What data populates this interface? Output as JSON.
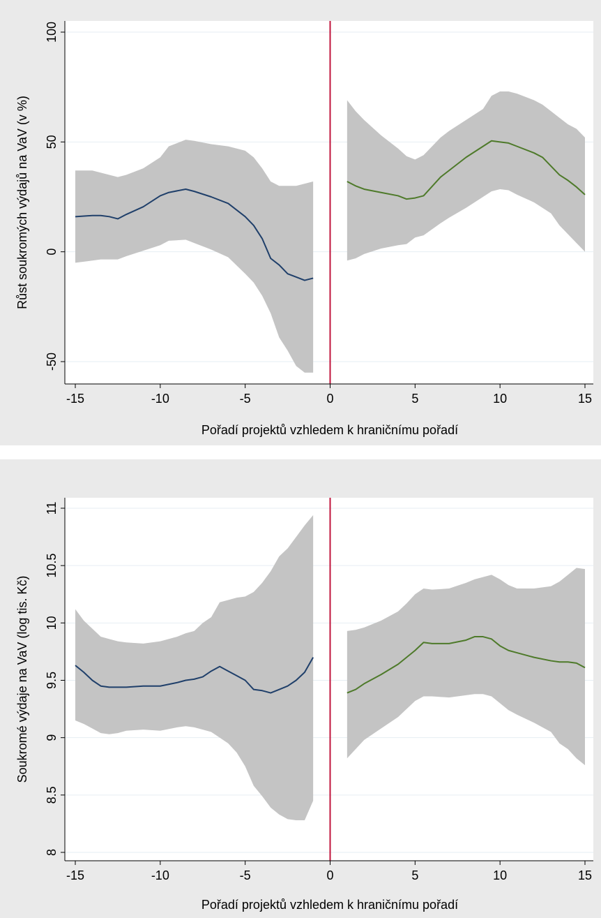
{
  "chart_data": [
    {
      "type": "line",
      "xlabel": "Pořadí projektů vzhledem k hraničnímu pořadí",
      "ylabel": "Růst soukromých výdajů na VaV (v %)",
      "xlim": [
        -15,
        15
      ],
      "ylim": [
        -55,
        100
      ],
      "x_ticks": [
        -15,
        -10,
        -5,
        0,
        5,
        10,
        15
      ],
      "y_ticks": [
        -50,
        0,
        50,
        100
      ],
      "cutoff_x": 0,
      "grid": true,
      "legend": "none",
      "colors": {
        "left": "#1f3f6a",
        "right": "#4e7a2a",
        "band": "#c4c4c4",
        "cutoff": "#c0143c",
        "panel_bg": "#eaeaea"
      },
      "series": [
        {
          "x": [
            -15,
            -14,
            -13.5,
            -13,
            -12.5,
            -12,
            -11,
            -10,
            -9.5,
            -8.5,
            -8,
            -7,
            -6,
            -5,
            -4.5,
            -4,
            -3.5,
            -3,
            -2.5,
            -2,
            -1.5,
            -1
          ],
          "values": [
            16,
            16.5,
            16.5,
            16,
            15,
            17,
            20.5,
            25.5,
            27,
            28.5,
            27.5,
            25,
            22,
            16,
            12,
            6,
            -3,
            -6,
            -10,
            -11.5,
            -13,
            -12
          ],
          "upper": [
            37,
            37,
            36,
            35,
            34,
            35,
            38,
            43,
            48,
            51,
            50.5,
            49,
            48,
            46,
            43,
            38,
            32,
            30,
            30,
            30,
            31,
            32
          ],
          "lower": [
            -5,
            -4,
            -3.5,
            -3.5,
            -3.5,
            -2,
            0.5,
            3,
            5,
            5.5,
            4,
            1,
            -2.5,
            -10,
            -14,
            -20,
            -28,
            -39,
            -45,
            -52,
            -55,
            -55
          ]
        },
        {
          "x": [
            1,
            1.5,
            2,
            3,
            4,
            4.5,
            5,
            5.5,
            6.5,
            7,
            8,
            9,
            9.5,
            10,
            10.5,
            11,
            12,
            12.5,
            13,
            13.5,
            14,
            14.5,
            15
          ],
          "values": [
            32,
            30,
            28.5,
            27,
            25.5,
            24,
            24.5,
            25.5,
            34,
            37,
            43,
            48,
            50.5,
            50,
            49.5,
            48,
            45,
            43,
            39,
            35,
            32.5,
            29.5,
            26
          ],
          "upper": [
            69,
            64,
            60,
            53,
            47,
            43.5,
            42,
            44,
            52,
            55,
            60,
            65,
            71,
            73,
            73,
            72,
            69,
            67,
            64,
            61,
            58,
            56,
            52
          ],
          "lower": [
            -4,
            -3,
            -1,
            1.5,
            3,
            3.5,
            6.5,
            7.5,
            13,
            15.5,
            20,
            25,
            27.5,
            28.5,
            28,
            26,
            22.5,
            20,
            17.5,
            12,
            8,
            4,
            0
          ]
        }
      ]
    },
    {
      "type": "line",
      "xlabel": "Pořadí projektů vzhledem k hraničnímu pořadí",
      "ylabel": "Soukromé výdaje na VaV (log tis. Kč)",
      "xlim": [
        -15,
        15
      ],
      "ylim": [
        8,
        11
      ],
      "x_ticks": [
        -15,
        -10,
        -5,
        0,
        5,
        10,
        15
      ],
      "y_ticks": [
        8,
        8.5,
        9,
        9.5,
        10,
        10.5,
        11
      ],
      "cutoff_x": 0,
      "grid": true,
      "legend": "none",
      "colors": {
        "left": "#1f3f6a",
        "right": "#4e7a2a",
        "band": "#c4c4c4",
        "cutoff": "#c0143c",
        "panel_bg": "#eaeaea"
      },
      "series": [
        {
          "x": [
            -15,
            -14.5,
            -14,
            -13.5,
            -13,
            -12.5,
            -12,
            -11,
            -10,
            -9,
            -8.5,
            -8,
            -7.5,
            -7,
            -6.5,
            -6,
            -5.5,
            -5,
            -4.5,
            -4,
            -3.5,
            -3,
            -2.5,
            -2,
            -1.5,
            -1
          ],
          "values": [
            9.63,
            9.57,
            9.5,
            9.45,
            9.44,
            9.44,
            9.44,
            9.45,
            9.45,
            9.48,
            9.5,
            9.51,
            9.53,
            9.58,
            9.62,
            9.58,
            9.54,
            9.5,
            9.42,
            9.41,
            9.39,
            9.42,
            9.45,
            9.5,
            9.57,
            9.7
          ],
          "upper": [
            10.12,
            10.02,
            9.95,
            9.88,
            9.86,
            9.84,
            9.83,
            9.82,
            9.84,
            9.88,
            9.91,
            9.93,
            10.0,
            10.05,
            10.18,
            10.2,
            10.22,
            10.23,
            10.27,
            10.35,
            10.45,
            10.58,
            10.65,
            10.75,
            10.85,
            10.94
          ],
          "lower": [
            9.15,
            9.12,
            9.08,
            9.04,
            9.03,
            9.04,
            9.06,
            9.07,
            9.06,
            9.09,
            9.1,
            9.09,
            9.07,
            9.05,
            9.0,
            8.95,
            8.87,
            8.75,
            8.58,
            8.49,
            8.39,
            8.33,
            8.29,
            8.28,
            8.28,
            8.45
          ]
        },
        {
          "x": [
            1,
            1.5,
            2,
            3,
            4,
            4.5,
            5,
            5.5,
            6,
            7,
            8,
            8.5,
            9,
            9.5,
            10,
            10.5,
            11,
            12,
            13,
            13.5,
            14,
            14.5,
            15
          ],
          "values": [
            9.39,
            9.42,
            9.47,
            9.55,
            9.64,
            9.7,
            9.76,
            9.83,
            9.82,
            9.82,
            9.85,
            9.88,
            9.88,
            9.86,
            9.8,
            9.76,
            9.74,
            9.7,
            9.67,
            9.66,
            9.66,
            9.65,
            9.61
          ],
          "upper": [
            9.93,
            9.94,
            9.96,
            10.02,
            10.1,
            10.17,
            10.25,
            10.3,
            10.29,
            10.3,
            10.35,
            10.38,
            10.4,
            10.42,
            10.38,
            10.33,
            10.3,
            10.3,
            10.32,
            10.36,
            10.42,
            10.48,
            10.47
          ],
          "lower": [
            8.82,
            8.9,
            8.98,
            9.08,
            9.18,
            9.25,
            9.32,
            9.36,
            9.36,
            9.35,
            9.37,
            9.38,
            9.38,
            9.36,
            9.3,
            9.24,
            9.2,
            9.13,
            9.05,
            8.95,
            8.9,
            8.82,
            8.76
          ]
        }
      ]
    }
  ]
}
